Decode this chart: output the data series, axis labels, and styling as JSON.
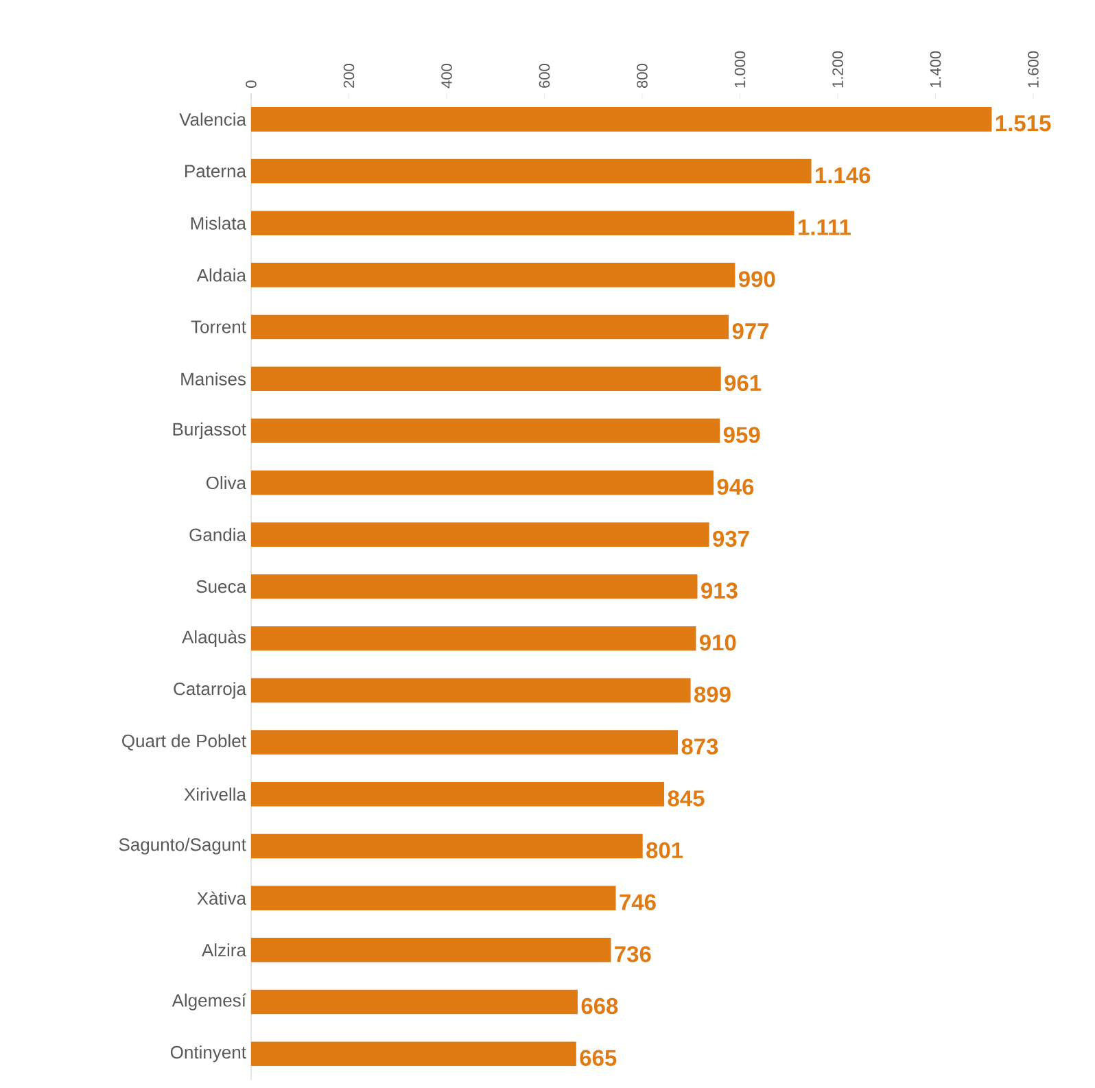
{
  "chart_data": {
    "type": "bar",
    "orientation": "horizontal",
    "categories": [
      "Valencia",
      "Paterna",
      "Mislata",
      "Aldaia",
      "Torrent",
      "Manises",
      "Burjassot",
      "Oliva",
      "Gandia",
      "Sueca",
      "Alaquàs",
      "Catarroja",
      "Quart de Poblet",
      "Xirivella",
      "Sagunto/Sagunt",
      "Xàtiva",
      "Alzira",
      "Algemesí",
      "Ontinyent"
    ],
    "values": [
      1515,
      1146,
      1111,
      990,
      977,
      961,
      959,
      946,
      937,
      913,
      910,
      899,
      873,
      845,
      801,
      746,
      736,
      668,
      665
    ],
    "value_labels": [
      "1.515",
      "1.146",
      "1.111",
      "990",
      "977",
      "961",
      "959",
      "946",
      "937",
      "913",
      "910",
      "899",
      "873",
      "845",
      "801",
      "746",
      "736",
      "668",
      "665"
    ],
    "color": "#e07b14",
    "xlim": [
      0,
      1600
    ],
    "xticks": [
      0,
      200,
      400,
      600,
      800,
      {
        "value": 1000,
        "label": "1.000"
      },
      {
        "value": 1200,
        "label": "1.200"
      },
      {
        "value": 1400,
        "label": "1.400"
      },
      {
        "value": 1600,
        "label": "1.600"
      }
    ]
  }
}
